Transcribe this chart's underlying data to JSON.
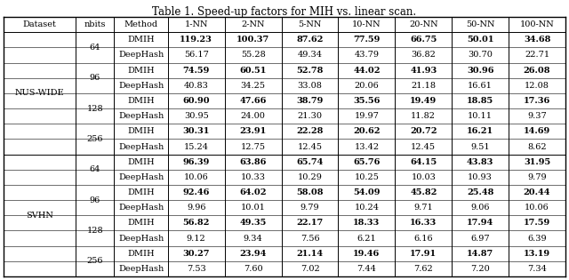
{
  "title": "Table 1. Speed-up factors for MIH vs. linear scan.",
  "col_headers": [
    "Dataset",
    "nbits",
    "Method",
    "1-NN",
    "2-NN",
    "5-NN",
    "10-NN",
    "20-NN",
    "50-NN",
    "100-NN"
  ],
  "rows": [
    [
      "NUS-WIDE",
      "64",
      "DMIH",
      "119.23",
      "100.37",
      "87.62",
      "77.59",
      "66.75",
      "50.01",
      "34.68"
    ],
    [
      "NUS-WIDE",
      "64",
      "DeepHash",
      "56.17",
      "55.28",
      "49.34",
      "43.79",
      "36.82",
      "30.70",
      "22.71"
    ],
    [
      "NUS-WIDE",
      "96",
      "DMIH",
      "74.59",
      "60.51",
      "52.78",
      "44.02",
      "41.93",
      "30.96",
      "26.08"
    ],
    [
      "NUS-WIDE",
      "96",
      "DeepHash",
      "40.83",
      "34.25",
      "33.08",
      "20.06",
      "21.18",
      "16.61",
      "12.08"
    ],
    [
      "NUS-WIDE",
      "128",
      "DMIH",
      "60.90",
      "47.66",
      "38.79",
      "35.56",
      "19.49",
      "18.85",
      "17.36"
    ],
    [
      "NUS-WIDE",
      "128",
      "DeepHash",
      "30.95",
      "24.00",
      "21.30",
      "19.97",
      "11.82",
      "10.11",
      "9.37"
    ],
    [
      "NUS-WIDE",
      "256",
      "DMIH",
      "30.31",
      "23.91",
      "22.28",
      "20.62",
      "20.72",
      "16.21",
      "14.69"
    ],
    [
      "NUS-WIDE",
      "256",
      "DeepHash",
      "15.24",
      "12.75",
      "12.45",
      "13.42",
      "12.45",
      "9.51",
      "8.62"
    ],
    [
      "SVHN",
      "64",
      "DMIH",
      "96.39",
      "63.86",
      "65.74",
      "65.76",
      "64.15",
      "43.83",
      "31.95"
    ],
    [
      "SVHN",
      "64",
      "DeepHash",
      "10.06",
      "10.33",
      "10.29",
      "10.25",
      "10.03",
      "10.93",
      "9.79"
    ],
    [
      "SVHN",
      "96",
      "DMIH",
      "92.46",
      "64.02",
      "58.08",
      "54.09",
      "45.82",
      "25.48",
      "20.44"
    ],
    [
      "SVHN",
      "96",
      "DeepHash",
      "9.96",
      "10.01",
      "9.79",
      "10.24",
      "9.71",
      "9.06",
      "10.06"
    ],
    [
      "SVHN",
      "128",
      "DMIH",
      "56.82",
      "49.35",
      "22.17",
      "18.33",
      "16.33",
      "17.94",
      "17.59"
    ],
    [
      "SVHN",
      "128",
      "DeepHash",
      "9.12",
      "9.34",
      "7.56",
      "6.21",
      "6.16",
      "6.97",
      "6.39"
    ],
    [
      "SVHN",
      "256",
      "DMIH",
      "30.27",
      "23.94",
      "21.14",
      "19.46",
      "17.91",
      "14.87",
      "13.19"
    ],
    [
      "SVHN",
      "256",
      "DeepHash",
      "7.53",
      "7.60",
      "7.02",
      "7.44",
      "7.62",
      "7.20",
      "7.34"
    ]
  ],
  "background_color": "#ffffff",
  "line_color": "#000000",
  "font_size": 7.0,
  "title_font_size": 8.5
}
